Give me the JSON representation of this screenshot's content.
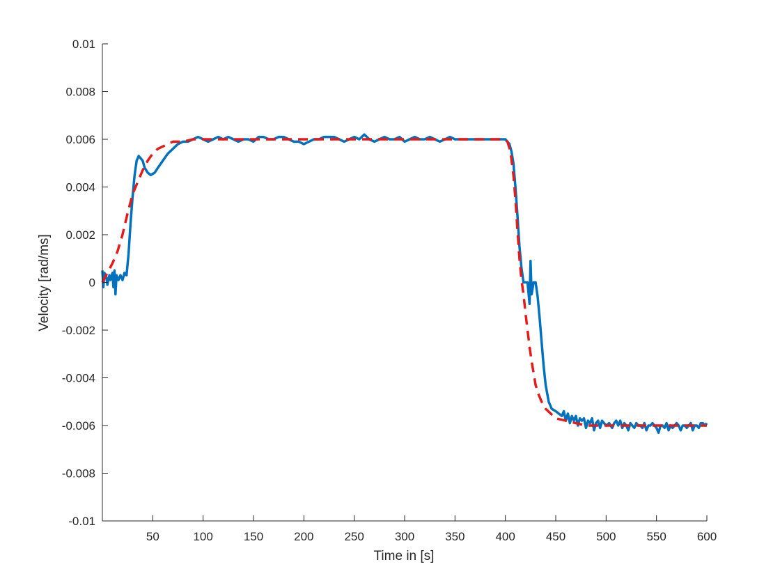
{
  "chart_data": {
    "type": "line",
    "xlabel": "Time in [s]",
    "ylabel": "Velocity [rad/ms]",
    "xlim": [
      0,
      600
    ],
    "ylim": [
      -0.01,
      0.01
    ],
    "xticks": [
      50,
      100,
      150,
      200,
      250,
      300,
      350,
      400,
      450,
      500,
      550,
      600
    ],
    "xtick_labels": [
      "50",
      "100",
      "150",
      "200",
      "250",
      "300",
      "350",
      "400",
      "450",
      "500",
      "550",
      "600"
    ],
    "yticks": [
      -0.01,
      -0.008,
      -0.006,
      -0.004,
      -0.002,
      0,
      0.002,
      0.004,
      0.006,
      0.008,
      0.01
    ],
    "ytick_labels": [
      "-0.01",
      "-0.008",
      "-0.006",
      "-0.004",
      "-0.002",
      "0",
      "0.002",
      "0.004",
      "0.006",
      "0.008",
      "0.01"
    ],
    "grid": false,
    "legend": false,
    "series": [
      {
        "style": "solid",
        "color": "#0072BD",
        "points": [
          [
            0,
            0.0005
          ],
          [
            1,
            -0.0002
          ],
          [
            2,
            0.0004
          ],
          [
            4,
            0.0002
          ],
          [
            5,
            -0.0001
          ],
          [
            7,
            0.0003
          ],
          [
            8,
            0.0001
          ],
          [
            10,
            0.0004
          ],
          [
            11,
            -0.0002
          ],
          [
            12,
            0.0005
          ],
          [
            13,
            -0.0005
          ],
          [
            14,
            0.0003
          ],
          [
            16,
            0.0001
          ],
          [
            18,
            0.0003
          ],
          [
            20,
            0.0001
          ],
          [
            22,
            0.0004
          ],
          [
            24,
            0.0003
          ],
          [
            26,
            0.0012
          ],
          [
            28,
            0.0025
          ],
          [
            30,
            0.0036
          ],
          [
            32,
            0.0045
          ],
          [
            34,
            0.0051
          ],
          [
            36,
            0.0053
          ],
          [
            38,
            0.0052
          ],
          [
            40,
            0.0051
          ],
          [
            42,
            0.0048
          ],
          [
            45,
            0.0046
          ],
          [
            48,
            0.0045
          ],
          [
            52,
            0.0046
          ],
          [
            55,
            0.0048
          ],
          [
            60,
            0.0051
          ],
          [
            65,
            0.0054
          ],
          [
            70,
            0.0056
          ],
          [
            75,
            0.0058
          ],
          [
            80,
            0.0059
          ],
          [
            85,
            0.0059
          ],
          [
            90,
            0.006
          ],
          [
            95,
            0.0061
          ],
          [
            100,
            0.006
          ],
          [
            105,
            0.0059
          ],
          [
            110,
            0.006
          ],
          [
            115,
            0.0061
          ],
          [
            120,
            0.006
          ],
          [
            125,
            0.0061
          ],
          [
            130,
            0.006
          ],
          [
            135,
            0.0059
          ],
          [
            140,
            0.006
          ],
          [
            145,
            0.006
          ],
          [
            150,
            0.0059
          ],
          [
            155,
            0.0061
          ],
          [
            160,
            0.0061
          ],
          [
            165,
            0.006
          ],
          [
            170,
            0.006
          ],
          [
            175,
            0.0061
          ],
          [
            180,
            0.0061
          ],
          [
            185,
            0.006
          ],
          [
            190,
            0.0059
          ],
          [
            195,
            0.0059
          ],
          [
            200,
            0.0058
          ],
          [
            205,
            0.0059
          ],
          [
            210,
            0.006
          ],
          [
            215,
            0.006
          ],
          [
            220,
            0.0061
          ],
          [
            225,
            0.0061
          ],
          [
            230,
            0.0061
          ],
          [
            235,
            0.006
          ],
          [
            240,
            0.0059
          ],
          [
            245,
            0.006
          ],
          [
            250,
            0.0061
          ],
          [
            255,
            0.006
          ],
          [
            260,
            0.0062
          ],
          [
            265,
            0.006
          ],
          [
            270,
            0.0059
          ],
          [
            275,
            0.006
          ],
          [
            280,
            0.0061
          ],
          [
            285,
            0.006
          ],
          [
            290,
            0.006
          ],
          [
            295,
            0.0061
          ],
          [
            300,
            0.0059
          ],
          [
            305,
            0.006
          ],
          [
            310,
            0.0061
          ],
          [
            315,
            0.006
          ],
          [
            320,
            0.006
          ],
          [
            325,
            0.0061
          ],
          [
            330,
            0.006
          ],
          [
            335,
            0.0059
          ],
          [
            340,
            0.006
          ],
          [
            345,
            0.0061
          ],
          [
            350,
            0.006
          ],
          [
            355,
            0.006
          ],
          [
            360,
            0.006
          ],
          [
            365,
            0.006
          ],
          [
            370,
            0.006
          ],
          [
            375,
            0.006
          ],
          [
            380,
            0.006
          ],
          [
            385,
            0.006
          ],
          [
            390,
            0.006
          ],
          [
            395,
            0.006
          ],
          [
            398,
            0.006
          ],
          [
            400,
            0.006
          ],
          [
            402,
            0.0059
          ],
          [
            404,
            0.0058
          ],
          [
            406,
            0.0055
          ],
          [
            408,
            0.005
          ],
          [
            410,
            0.004
          ],
          [
            412,
            0.0028
          ],
          [
            414,
            0.0015
          ],
          [
            416,
            0.0006
          ],
          [
            418,
            0.0
          ],
          [
            420,
            0.0
          ],
          [
            422,
            0.0
          ],
          [
            424,
            -0.0009
          ],
          [
            425,
            0.0009
          ],
          [
            426,
            -0.0005
          ],
          [
            428,
            0.0
          ],
          [
            430,
            0.0
          ],
          [
            432,
            -0.0006
          ],
          [
            434,
            -0.0015
          ],
          [
            436,
            -0.0025
          ],
          [
            438,
            -0.0035
          ],
          [
            440,
            -0.0043
          ],
          [
            443,
            -0.005
          ],
          [
            446,
            -0.0053
          ],
          [
            450,
            -0.0054
          ],
          [
            453,
            -0.0055
          ],
          [
            456,
            -0.0056
          ],
          [
            458,
            -0.0054
          ],
          [
            460,
            -0.0058
          ],
          [
            462,
            -0.0055
          ],
          [
            464,
            -0.0059
          ],
          [
            466,
            -0.0056
          ],
          [
            468,
            -0.0058
          ],
          [
            470,
            -0.0056
          ],
          [
            472,
            -0.006
          ],
          [
            474,
            -0.0057
          ],
          [
            476,
            -0.0058
          ],
          [
            478,
            -0.0057
          ],
          [
            480,
            -0.0061
          ],
          [
            482,
            -0.0058
          ],
          [
            484,
            -0.0059
          ],
          [
            486,
            -0.0057
          ],
          [
            488,
            -0.0062
          ],
          [
            490,
            -0.0059
          ],
          [
            492,
            -0.0058
          ],
          [
            494,
            -0.0061
          ],
          [
            496,
            -0.0058
          ],
          [
            498,
            -0.0059
          ],
          [
            500,
            -0.006
          ],
          [
            503,
            -0.0059
          ],
          [
            506,
            -0.0061
          ],
          [
            508,
            -0.0059
          ],
          [
            510,
            -0.0058
          ],
          [
            512,
            -0.006
          ],
          [
            514,
            -0.0058
          ],
          [
            516,
            -0.0061
          ],
          [
            518,
            -0.0059
          ],
          [
            520,
            -0.006
          ],
          [
            522,
            -0.0062
          ],
          [
            524,
            -0.0059
          ],
          [
            526,
            -0.006
          ],
          [
            528,
            -0.0061
          ],
          [
            530,
            -0.0059
          ],
          [
            532,
            -0.006
          ],
          [
            534,
            -0.006
          ],
          [
            536,
            -0.0061
          ],
          [
            538,
            -0.0059
          ],
          [
            540,
            -0.0062
          ],
          [
            542,
            -0.006
          ],
          [
            544,
            -0.006
          ],
          [
            546,
            -0.0059
          ],
          [
            548,
            -0.006
          ],
          [
            550,
            -0.0061
          ],
          [
            552,
            -0.0063
          ],
          [
            554,
            -0.006
          ],
          [
            556,
            -0.006
          ],
          [
            558,
            -0.0061
          ],
          [
            560,
            -0.0059
          ],
          [
            562,
            -0.0062
          ],
          [
            564,
            -0.006
          ],
          [
            566,
            -0.0061
          ],
          [
            568,
            -0.006
          ],
          [
            570,
            -0.0059
          ],
          [
            572,
            -0.006
          ],
          [
            574,
            -0.0062
          ],
          [
            576,
            -0.006
          ],
          [
            578,
            -0.006
          ],
          [
            580,
            -0.0061
          ],
          [
            582,
            -0.006
          ],
          [
            584,
            -0.0059
          ],
          [
            586,
            -0.0062
          ],
          [
            588,
            -0.006
          ],
          [
            590,
            -0.006
          ],
          [
            592,
            -0.0061
          ],
          [
            594,
            -0.0059
          ],
          [
            596,
            -0.0059
          ],
          [
            598,
            -0.006
          ],
          [
            600,
            -0.0059
          ]
        ]
      },
      {
        "style": "dashed",
        "color": "#E51B1B",
        "points": [
          [
            0,
            0.0
          ],
          [
            5,
            0.0004
          ],
          [
            10,
            0.0008
          ],
          [
            15,
            0.0013
          ],
          [
            20,
            0.002
          ],
          [
            25,
            0.0029
          ],
          [
            30,
            0.0037
          ],
          [
            35,
            0.0042
          ],
          [
            40,
            0.0047
          ],
          [
            45,
            0.0051
          ],
          [
            50,
            0.0054
          ],
          [
            55,
            0.0056
          ],
          [
            60,
            0.0057
          ],
          [
            65,
            0.0058
          ],
          [
            70,
            0.0059
          ],
          [
            80,
            0.0059
          ],
          [
            90,
            0.006
          ],
          [
            100,
            0.006
          ],
          [
            150,
            0.006
          ],
          [
            200,
            0.006
          ],
          [
            250,
            0.006
          ],
          [
            300,
            0.006
          ],
          [
            350,
            0.006
          ],
          [
            390,
            0.006
          ],
          [
            398,
            0.006
          ],
          [
            402,
            0.0059
          ],
          [
            405,
            0.0055
          ],
          [
            408,
            0.0045
          ],
          [
            410,
            0.0035
          ],
          [
            412,
            0.0022
          ],
          [
            414,
            0.001
          ],
          [
            416,
            0.0001
          ],
          [
            418,
            -0.0005
          ],
          [
            420,
            -0.0013
          ],
          [
            422,
            -0.002
          ],
          [
            424,
            -0.0027
          ],
          [
            426,
            -0.0033
          ],
          [
            428,
            -0.0038
          ],
          [
            430,
            -0.0043
          ],
          [
            433,
            -0.0047
          ],
          [
            436,
            -0.005
          ],
          [
            440,
            -0.0053
          ],
          [
            445,
            -0.0055
          ],
          [
            450,
            -0.0057
          ],
          [
            460,
            -0.0058
          ],
          [
            470,
            -0.0059
          ],
          [
            480,
            -0.006
          ],
          [
            500,
            -0.006
          ],
          [
            550,
            -0.006
          ],
          [
            600,
            -0.006
          ]
        ]
      }
    ]
  }
}
